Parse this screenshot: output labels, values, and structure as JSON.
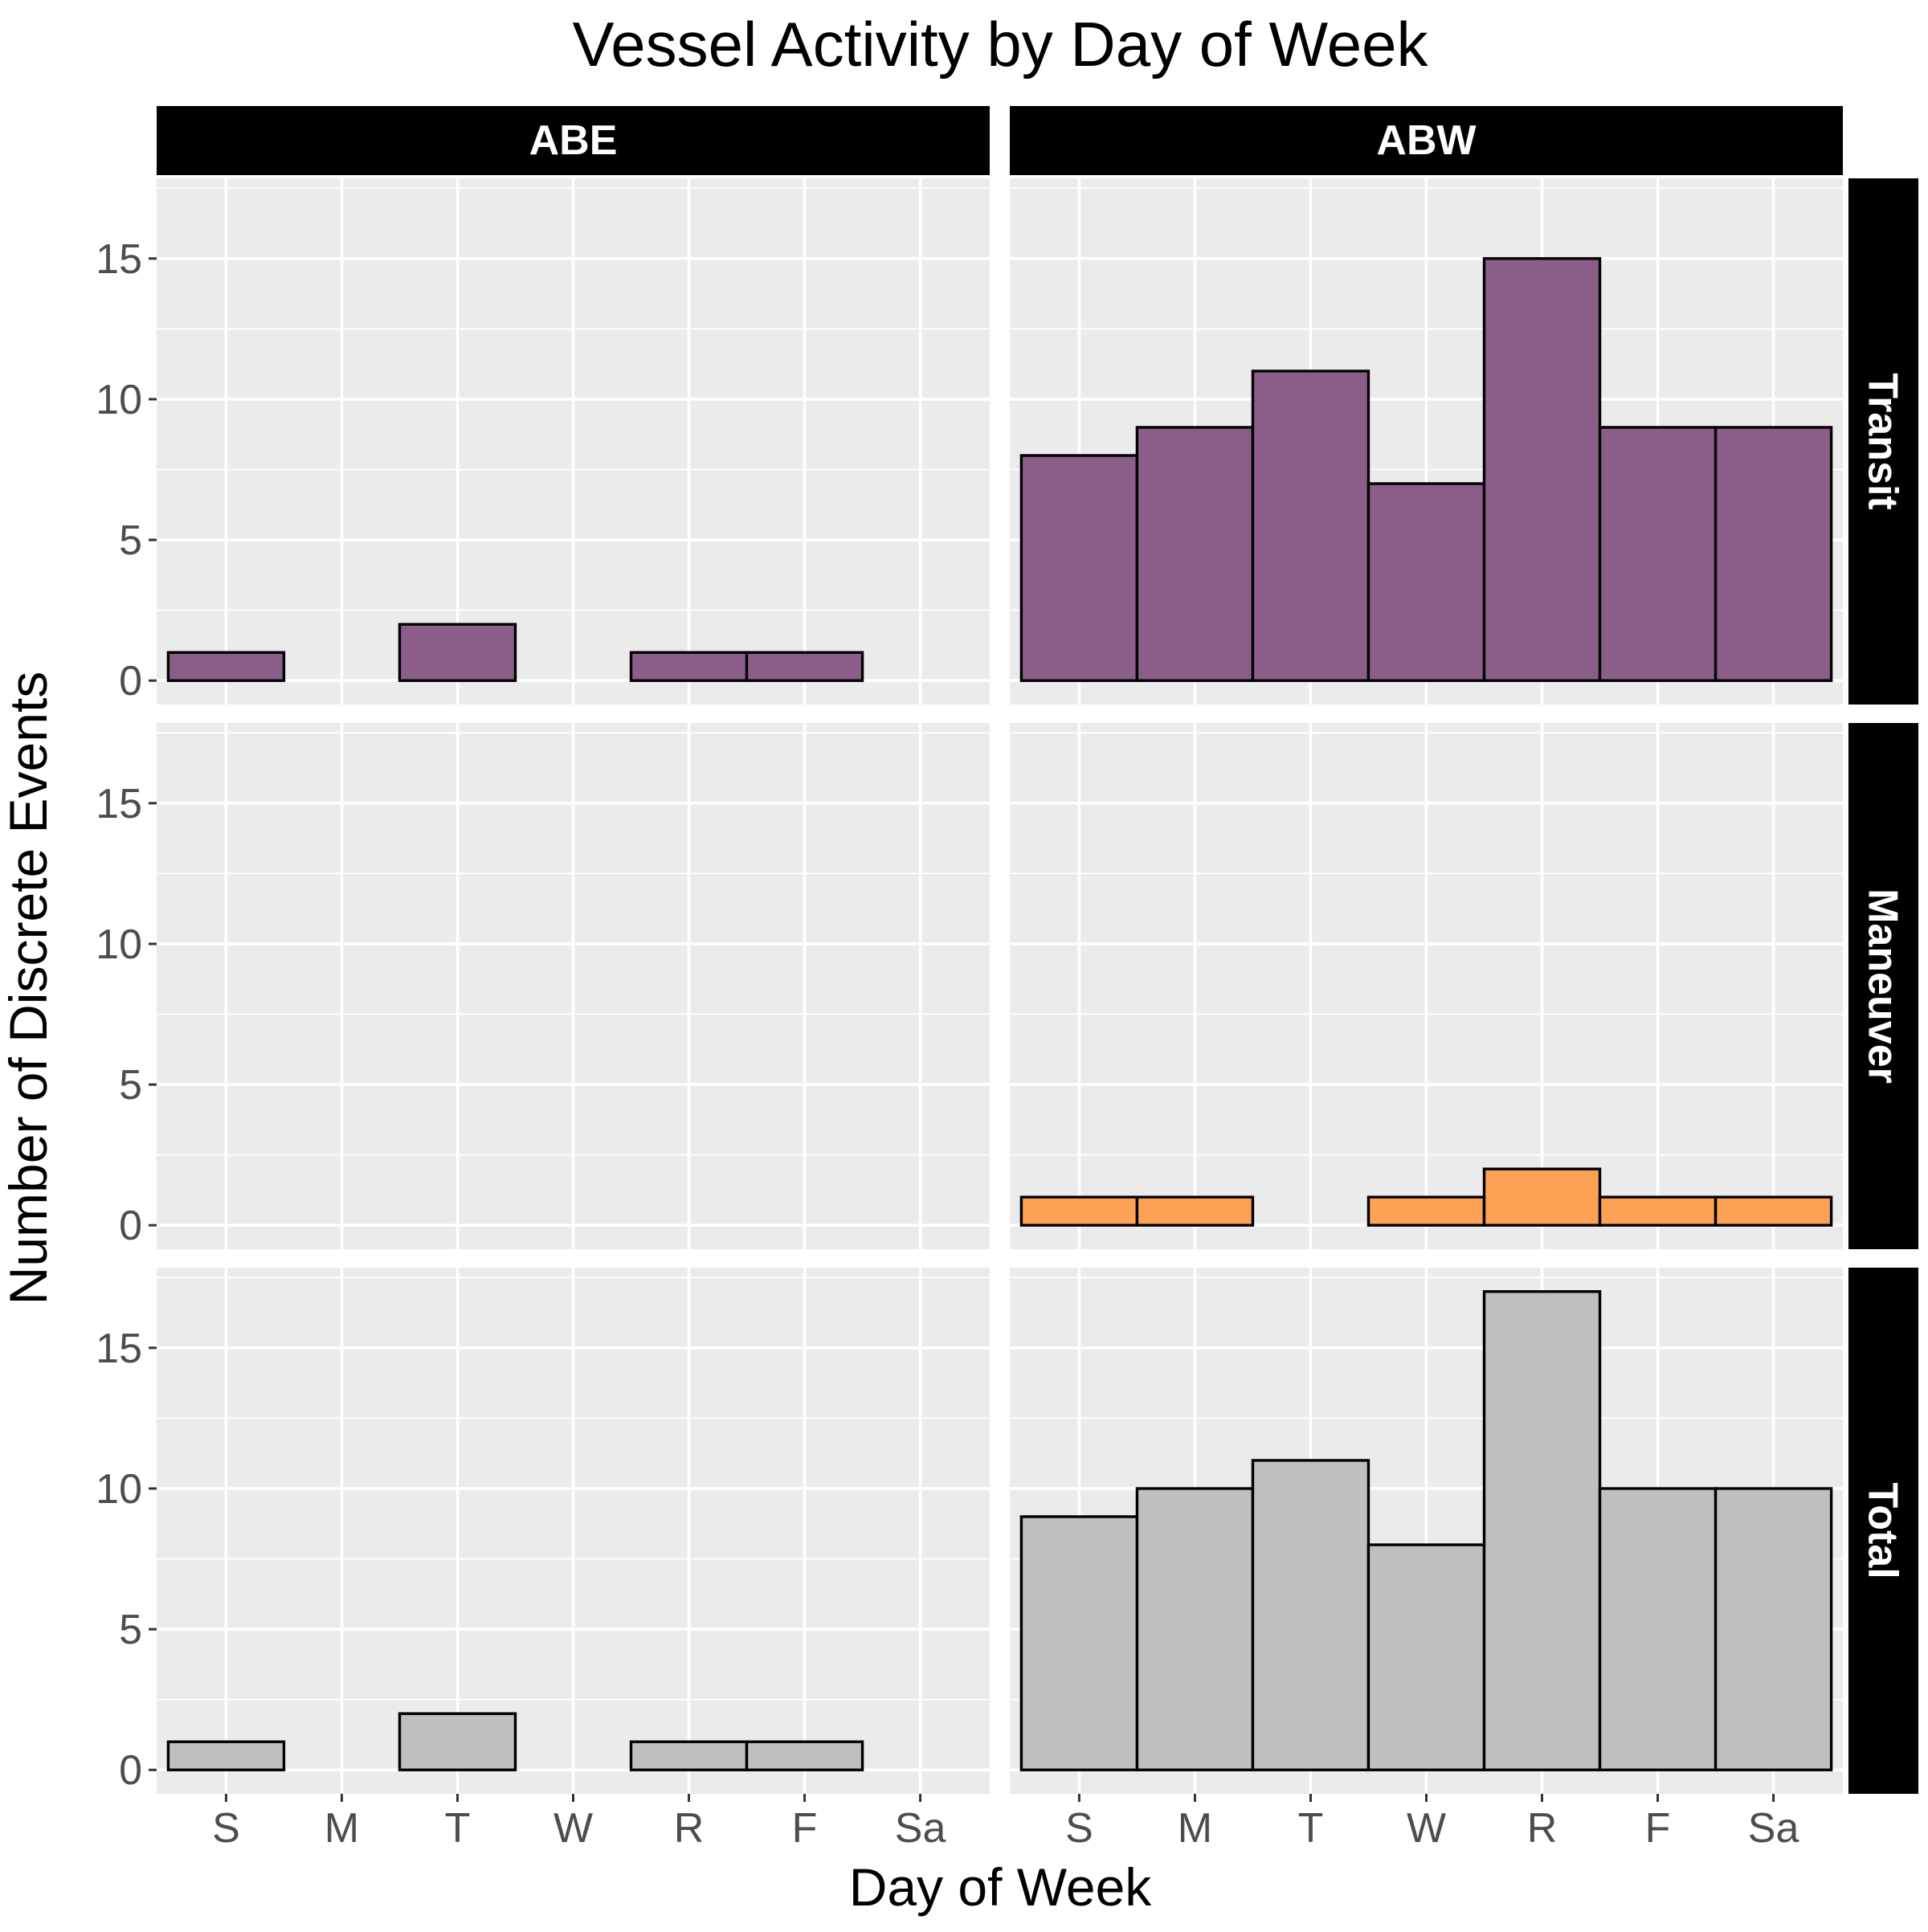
{
  "chart_data": {
    "type": "bar",
    "title": "Vessel Activity by Day of Week",
    "xlabel": "Day of Week",
    "ylabel": "Number of Discrete Events",
    "categories": [
      "S",
      "M",
      "T",
      "W",
      "R",
      "F",
      "Sa"
    ],
    "column_facets": [
      "ABE",
      "ABW"
    ],
    "row_facets": [
      "Transit",
      "Maneuver",
      "Total"
    ],
    "ylim": [
      -0.85,
      17.85
    ],
    "yticks": [
      0,
      5,
      10,
      15
    ],
    "ytick_labels": [
      "0",
      "5",
      "10",
      "15"
    ],
    "grid": true,
    "colors": {
      "Transit": "#8b5e89",
      "Maneuver": "#fda154",
      "Total": "#bfbfbf",
      "panel_background": "#ebebeb",
      "strip_background": "#000000",
      "strip_text": "#ffffff",
      "bar_outline": "#000000"
    },
    "panels": [
      {
        "column": "ABE",
        "row": "Transit",
        "values": [
          1,
          0,
          2,
          0,
          1,
          1,
          0
        ]
      },
      {
        "column": "ABW",
        "row": "Transit",
        "values": [
          8,
          9,
          11,
          7,
          15,
          9,
          9
        ]
      },
      {
        "column": "ABE",
        "row": "Maneuver",
        "values": [
          0,
          0,
          0,
          0,
          0,
          0,
          0
        ]
      },
      {
        "column": "ABW",
        "row": "Maneuver",
        "values": [
          1,
          1,
          0,
          1,
          2,
          1,
          1
        ]
      },
      {
        "column": "ABE",
        "row": "Total",
        "values": [
          1,
          0,
          2,
          0,
          1,
          1,
          0
        ]
      },
      {
        "column": "ABW",
        "row": "Total",
        "values": [
          9,
          10,
          11,
          8,
          17,
          10,
          10
        ]
      }
    ]
  }
}
